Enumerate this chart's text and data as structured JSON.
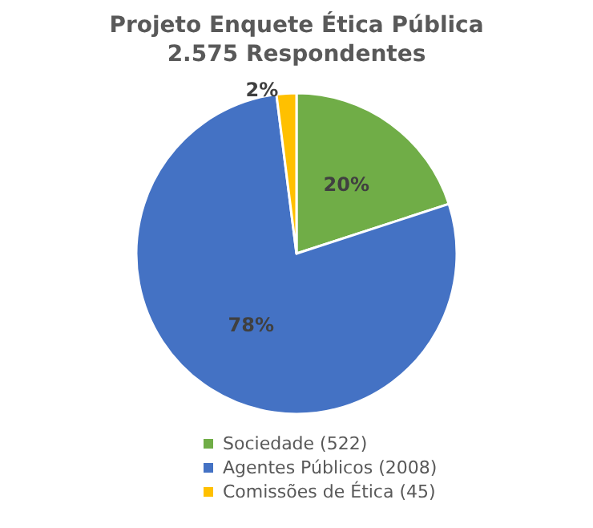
{
  "chart_data": {
    "type": "pie",
    "title": "Projeto Enquete Ética Pública",
    "subtitle": "2.575 Respondentes",
    "categories": [
      "Sociedade (522)",
      "Agentes Públicos (2008)",
      "Comissões de Ética (45)"
    ],
    "values": [
      20,
      78,
      2
    ],
    "colors": [
      "#70ad47",
      "#4472c4",
      "#ffc000"
    ],
    "value_labels": [
      "20%",
      "78%",
      "2%"
    ],
    "legend": "bottom"
  }
}
